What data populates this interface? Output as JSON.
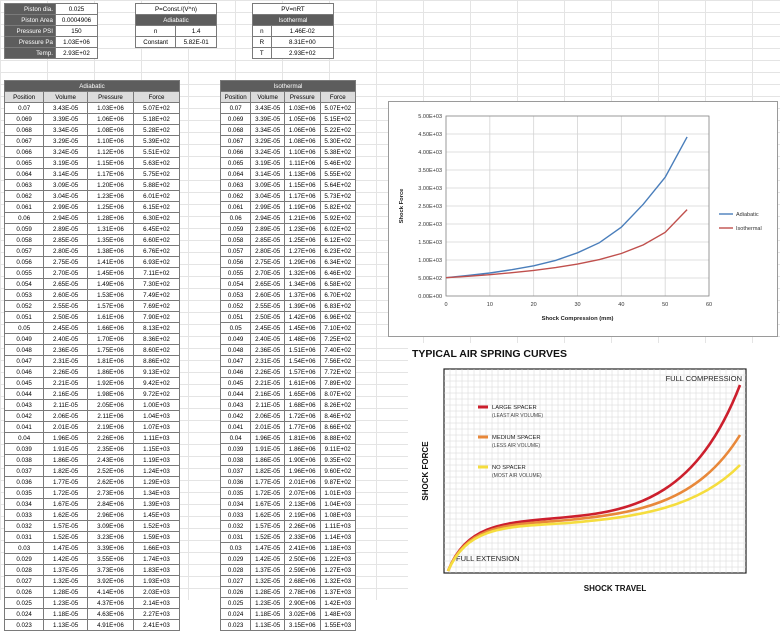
{
  "inputs": [
    {
      "label": "Piston dia.",
      "value": "0.025"
    },
    {
      "label": "Piston Area",
      "value": "0.0004906"
    },
    {
      "label": "Pressure PSI",
      "value": "150"
    },
    {
      "label": "Pressure Pa",
      "value": "1.03E+06"
    },
    {
      "label": "Temp.",
      "value": "2.93E+02"
    }
  ],
  "adiabatic_const": {
    "formula": "P=Const./(V^n)",
    "title": "Adiabatic",
    "rows": [
      {
        "label": "n",
        "value": "1.4"
      },
      {
        "label": "Constant",
        "value": "5.82E-01"
      }
    ]
  },
  "isothermal_const": {
    "formula": "PV=nRT",
    "title": "Isothermal",
    "rows": [
      {
        "label": "n",
        "value": "1.46E-02"
      },
      {
        "label": "R",
        "value": "8.31E+00"
      },
      {
        "label": "T",
        "value": "2.93E+02"
      }
    ]
  },
  "adiabatic_table": {
    "title": "Adiabatic",
    "columns": [
      "Position",
      "Volume",
      "Pressure",
      "Force"
    ],
    "rows": [
      [
        "0.07",
        "3.43E-05",
        "1.03E+06",
        "5.07E+02"
      ],
      [
        "0.069",
        "3.39E-05",
        "1.06E+06",
        "5.18E+02"
      ],
      [
        "0.068",
        "3.34E-05",
        "1.08E+06",
        "5.28E+02"
      ],
      [
        "0.067",
        "3.29E-05",
        "1.10E+06",
        "5.39E+02"
      ],
      [
        "0.066",
        "3.24E-05",
        "1.12E+06",
        "5.51E+02"
      ],
      [
        "0.065",
        "3.19E-05",
        "1.15E+06",
        "5.63E+02"
      ],
      [
        "0.064",
        "3.14E-05",
        "1.17E+06",
        "5.75E+02"
      ],
      [
        "0.063",
        "3.09E-05",
        "1.20E+06",
        "5.88E+02"
      ],
      [
        "0.062",
        "3.04E-05",
        "1.23E+06",
        "6.01E+02"
      ],
      [
        "0.061",
        "2.99E-05",
        "1.25E+06",
        "6.15E+02"
      ],
      [
        "0.06",
        "2.94E-05",
        "1.28E+06",
        "6.30E+02"
      ],
      [
        "0.059",
        "2.89E-05",
        "1.31E+06",
        "6.45E+02"
      ],
      [
        "0.058",
        "2.85E-05",
        "1.35E+06",
        "6.60E+02"
      ],
      [
        "0.057",
        "2.80E-05",
        "1.38E+06",
        "6.76E+02"
      ],
      [
        "0.056",
        "2.75E-05",
        "1.41E+06",
        "6.93E+02"
      ],
      [
        "0.055",
        "2.70E-05",
        "1.45E+06",
        "7.11E+02"
      ],
      [
        "0.054",
        "2.65E-05",
        "1.49E+06",
        "7.30E+02"
      ],
      [
        "0.053",
        "2.60E-05",
        "1.53E+06",
        "7.49E+02"
      ],
      [
        "0.052",
        "2.55E-05",
        "1.57E+06",
        "7.69E+02"
      ],
      [
        "0.051",
        "2.50E-05",
        "1.61E+06",
        "7.90E+02"
      ],
      [
        "0.05",
        "2.45E-05",
        "1.66E+06",
        "8.13E+02"
      ],
      [
        "0.049",
        "2.40E-05",
        "1.70E+06",
        "8.36E+02"
      ],
      [
        "0.048",
        "2.36E-05",
        "1.75E+06",
        "8.60E+02"
      ],
      [
        "0.047",
        "2.31E-05",
        "1.81E+06",
        "8.86E+02"
      ],
      [
        "0.046",
        "2.26E-05",
        "1.86E+06",
        "9.13E+02"
      ],
      [
        "0.045",
        "2.21E-05",
        "1.92E+06",
        "9.42E+02"
      ],
      [
        "0.044",
        "2.16E-05",
        "1.98E+06",
        "9.72E+02"
      ],
      [
        "0.043",
        "2.11E-05",
        "2.05E+06",
        "1.00E+03"
      ],
      [
        "0.042",
        "2.06E-05",
        "2.11E+06",
        "1.04E+03"
      ],
      [
        "0.041",
        "2.01E-05",
        "2.19E+06",
        "1.07E+03"
      ],
      [
        "0.04",
        "1.96E-05",
        "2.26E+06",
        "1.11E+03"
      ],
      [
        "0.039",
        "1.91E-05",
        "2.35E+06",
        "1.15E+03"
      ],
      [
        "0.038",
        "1.86E-05",
        "2.43E+06",
        "1.19E+03"
      ],
      [
        "0.037",
        "1.82E-05",
        "2.52E+06",
        "1.24E+03"
      ],
      [
        "0.036",
        "1.77E-05",
        "2.62E+06",
        "1.29E+03"
      ],
      [
        "0.035",
        "1.72E-05",
        "2.73E+06",
        "1.34E+03"
      ],
      [
        "0.034",
        "1.67E-05",
        "2.84E+06",
        "1.39E+03"
      ],
      [
        "0.033",
        "1.62E-05",
        "2.96E+06",
        "1.45E+03"
      ],
      [
        "0.032",
        "1.57E-05",
        "3.09E+06",
        "1.52E+03"
      ],
      [
        "0.031",
        "1.52E-05",
        "3.23E+06",
        "1.59E+03"
      ],
      [
        "0.03",
        "1.47E-05",
        "3.39E+06",
        "1.66E+03"
      ],
      [
        "0.029",
        "1.42E-05",
        "3.55E+06",
        "1.74E+03"
      ],
      [
        "0.028",
        "1.37E-05",
        "3.73E+06",
        "1.83E+03"
      ],
      [
        "0.027",
        "1.32E-05",
        "3.92E+06",
        "1.93E+03"
      ],
      [
        "0.026",
        "1.28E-05",
        "4.14E+06",
        "2.03E+03"
      ],
      [
        "0.025",
        "1.23E-05",
        "4.37E+06",
        "2.14E+03"
      ],
      [
        "0.024",
        "1.18E-05",
        "4.63E+06",
        "2.27E+03"
      ],
      [
        "0.023",
        "1.13E-05",
        "4.91E+06",
        "2.41E+03"
      ]
    ]
  },
  "isothermal_table": {
    "title": "Isothermal",
    "columns": [
      "Position",
      "Volume",
      "Pressure",
      "Force"
    ],
    "rows": [
      [
        "0.07",
        "3.43E-05",
        "1.03E+06",
        "5.07E+02"
      ],
      [
        "0.069",
        "3.39E-05",
        "1.05E+06",
        "5.15E+02"
      ],
      [
        "0.068",
        "3.34E-05",
        "1.06E+06",
        "5.22E+02"
      ],
      [
        "0.067",
        "3.29E-05",
        "1.08E+06",
        "5.30E+02"
      ],
      [
        "0.066",
        "3.24E-05",
        "1.10E+06",
        "5.38E+02"
      ],
      [
        "0.065",
        "3.19E-05",
        "1.11E+06",
        "5.46E+02"
      ],
      [
        "0.064",
        "3.14E-05",
        "1.13E+06",
        "5.55E+02"
      ],
      [
        "0.063",
        "3.09E-05",
        "1.15E+06",
        "5.64E+02"
      ],
      [
        "0.062",
        "3.04E-05",
        "1.17E+06",
        "5.73E+02"
      ],
      [
        "0.061",
        "2.99E-05",
        "1.19E+06",
        "5.82E+02"
      ],
      [
        "0.06",
        "2.94E-05",
        "1.21E+06",
        "5.92E+02"
      ],
      [
        "0.059",
        "2.89E-05",
        "1.23E+06",
        "6.02E+02"
      ],
      [
        "0.058",
        "2.85E-05",
        "1.25E+06",
        "6.12E+02"
      ],
      [
        "0.057",
        "2.80E-05",
        "1.27E+06",
        "6.23E+02"
      ],
      [
        "0.056",
        "2.75E-05",
        "1.29E+06",
        "6.34E+02"
      ],
      [
        "0.055",
        "2.70E-05",
        "1.32E+06",
        "6.46E+02"
      ],
      [
        "0.054",
        "2.65E-05",
        "1.34E+06",
        "6.58E+02"
      ],
      [
        "0.053",
        "2.60E-05",
        "1.37E+06",
        "6.70E+02"
      ],
      [
        "0.052",
        "2.55E-05",
        "1.39E+06",
        "6.83E+02"
      ],
      [
        "0.051",
        "2.50E-05",
        "1.42E+06",
        "6.96E+02"
      ],
      [
        "0.05",
        "2.45E-05",
        "1.45E+06",
        "7.10E+02"
      ],
      [
        "0.049",
        "2.40E-05",
        "1.48E+06",
        "7.25E+02"
      ],
      [
        "0.048",
        "2.36E-05",
        "1.51E+06",
        "7.40E+02"
      ],
      [
        "0.047",
        "2.31E-05",
        "1.54E+06",
        "7.56E+02"
      ],
      [
        "0.046",
        "2.26E-05",
        "1.57E+06",
        "7.72E+02"
      ],
      [
        "0.045",
        "2.21E-05",
        "1.61E+06",
        "7.89E+02"
      ],
      [
        "0.044",
        "2.16E-05",
        "1.65E+06",
        "8.07E+02"
      ],
      [
        "0.043",
        "2.11E-05",
        "1.68E+06",
        "8.26E+02"
      ],
      [
        "0.042",
        "2.06E-05",
        "1.72E+06",
        "8.46E+02"
      ],
      [
        "0.041",
        "2.01E-05",
        "1.77E+06",
        "8.66E+02"
      ],
      [
        "0.04",
        "1.96E-05",
        "1.81E+06",
        "8.88E+02"
      ],
      [
        "0.039",
        "1.91E-05",
        "1.86E+06",
        "9.11E+02"
      ],
      [
        "0.038",
        "1.86E-05",
        "1.90E+06",
        "9.35E+02"
      ],
      [
        "0.037",
        "1.82E-05",
        "1.96E+06",
        "9.60E+02"
      ],
      [
        "0.036",
        "1.77E-05",
        "2.01E+06",
        "9.87E+02"
      ],
      [
        "0.035",
        "1.72E-05",
        "2.07E+06",
        "1.01E+03"
      ],
      [
        "0.034",
        "1.67E-05",
        "2.13E+06",
        "1.04E+03"
      ],
      [
        "0.033",
        "1.62E-05",
        "2.19E+06",
        "1.08E+03"
      ],
      [
        "0.032",
        "1.57E-05",
        "2.26E+06",
        "1.11E+03"
      ],
      [
        "0.031",
        "1.52E-05",
        "2.33E+06",
        "1.14E+03"
      ],
      [
        "0.03",
        "1.47E-05",
        "2.41E+06",
        "1.18E+03"
      ],
      [
        "0.029",
        "1.42E-05",
        "2.50E+06",
        "1.22E+03"
      ],
      [
        "0.028",
        "1.37E-05",
        "2.59E+06",
        "1.27E+03"
      ],
      [
        "0.027",
        "1.32E-05",
        "2.68E+06",
        "1.32E+03"
      ],
      [
        "0.026",
        "1.28E-05",
        "2.78E+06",
        "1.37E+03"
      ],
      [
        "0.025",
        "1.23E-05",
        "2.90E+06",
        "1.42E+03"
      ],
      [
        "0.024",
        "1.18E-05",
        "3.02E+06",
        "1.48E+03"
      ],
      [
        "0.023",
        "1.13E-05",
        "3.15E+06",
        "1.55E+03"
      ]
    ]
  },
  "chart_data": {
    "type": "line",
    "title": "",
    "xlabel": "Shock Compression (mm)",
    "ylabel": "Shock Force",
    "xlim": [
      0,
      60
    ],
    "ylim": [
      0,
      5000
    ],
    "xticks": [
      "0",
      "10",
      "20",
      "30",
      "40",
      "50",
      "60"
    ],
    "yticks": [
      "0.00E+00",
      "5.00E+02",
      "1.00E+03",
      "1.50E+03",
      "2.00E+03",
      "2.50E+03",
      "3.00E+03",
      "3.50E+03",
      "4.00E+03",
      "4.50E+03",
      "5.00E+03"
    ],
    "legend_position": "right",
    "grid": true,
    "series": [
      {
        "name": "Adiabatic",
        "color": "#4a7ebb",
        "x": [
          0,
          5,
          10,
          15,
          20,
          25,
          30,
          35,
          40,
          45,
          50,
          55
        ],
        "values": [
          507,
          569,
          640,
          730,
          840,
          990,
          1200,
          1480,
          1910,
          2550,
          3300,
          4420
        ]
      },
      {
        "name": "Isothermal",
        "color": "#c0504d",
        "x": [
          0,
          5,
          10,
          15,
          20,
          25,
          30,
          35,
          40,
          45,
          50,
          55
        ],
        "values": [
          507,
          546,
          592,
          646,
          710,
          789,
          887,
          1010,
          1180,
          1420,
          1770,
          2400
        ]
      }
    ]
  },
  "air_spring": {
    "title": "TYPICAL AIR SPRING CURVES",
    "xlabel": "SHOCK TRAVEL",
    "ylabel": "SHOCK FORCE",
    "label_full_compression": "FULL COMPRESSION",
    "label_full_extension": "FULL EXTENSION",
    "legend": [
      {
        "line1": "LARGE SPACER",
        "line2": "(LEAST AIR VOLUME)",
        "color": "#cc1f2d"
      },
      {
        "line1": "MEDIUM SPACER",
        "line2": "(LESS AIR VOLUME)",
        "color": "#e8883a"
      },
      {
        "line1": "NO SPACER",
        "line2": "(MOST AIR VOLUME)",
        "color": "#f5dd3e"
      }
    ]
  }
}
